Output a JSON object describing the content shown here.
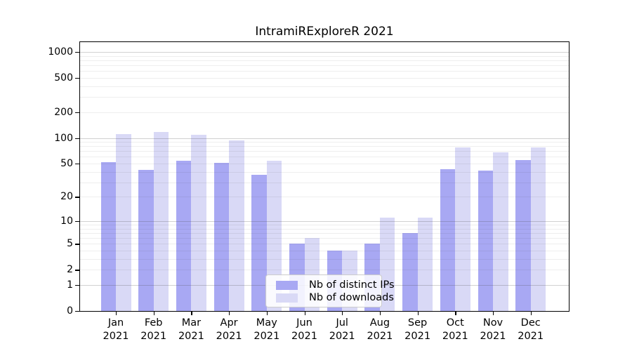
{
  "title": "IntramiRExploreR 2021",
  "chart_data": {
    "type": "bar",
    "title": "IntramiRExploreR 2021",
    "yscale": "log1p",
    "grid": true,
    "legend_position": "lower center",
    "ylim": [
      0,
      1070
    ],
    "yticks": [
      0,
      1,
      2,
      5,
      10,
      20,
      50,
      100,
      200,
      500,
      1000
    ],
    "categories": [
      "Jan",
      "Feb",
      "Mar",
      "Apr",
      "May",
      "Jun",
      "Jul",
      "Aug",
      "Sep",
      "Oct",
      "Nov",
      "Dec"
    ],
    "year_label": "2021",
    "series": [
      {
        "name": "Nb of distinct IPs",
        "color": "#a8a8f3",
        "values": [
          52,
          42,
          54,
          51,
          37,
          5,
          4,
          5,
          7,
          43,
          41,
          55
        ]
      },
      {
        "name": "Nb of downloads",
        "color": "#d9d9f6",
        "values": [
          110,
          118,
          108,
          93,
          54,
          6,
          4,
          11,
          11,
          78,
          68,
          78
        ]
      }
    ]
  }
}
